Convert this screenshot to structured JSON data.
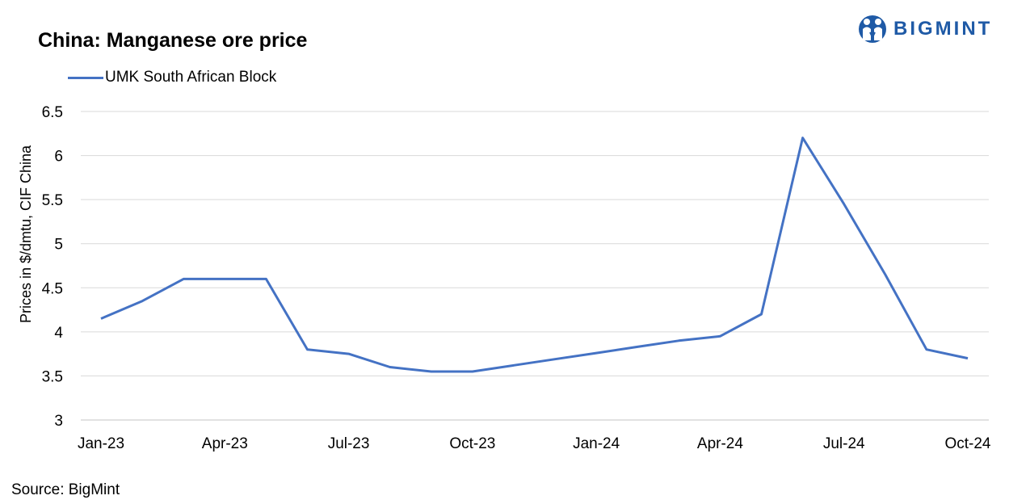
{
  "header": {
    "title": "China: Manganese ore price",
    "brand": "BIGMINT"
  },
  "footer": {
    "source": "Source:  BigMint"
  },
  "colors": {
    "series": "#4472C4",
    "grid": "#d9d9d9",
    "brand": "#1f5aa6"
  },
  "icons": {
    "logo": "bigmint-people-logo-icon"
  },
  "chart_data": {
    "type": "line",
    "title": "China: Manganese ore price",
    "xlabel": "",
    "ylabel": "Prices in $/dmtu, CIF China",
    "ylim": [
      3,
      6.5
    ],
    "yticks": [
      "6.5",
      "6",
      "5.5",
      "5",
      "4.5",
      "4",
      "3.5",
      "3"
    ],
    "xtick_labels": [
      "Jan-23",
      "Apr-23",
      "Jul-23",
      "Oct-23",
      "Jan-24",
      "Apr-24",
      "Jul-24",
      "Oct-24"
    ],
    "x": [
      "Jan-23",
      "Feb-23",
      "Mar-23",
      "Apr-23",
      "May-23",
      "Jun-23",
      "Jul-23",
      "Aug-23",
      "Sep-23",
      "Oct-23",
      "Nov-23",
      "Dec-23",
      "Jan-24",
      "Feb-24",
      "Mar-24",
      "Apr-24",
      "May-24",
      "Jun-24",
      "Jul-24",
      "Aug-24",
      "Sep-24",
      "Oct-24"
    ],
    "series": [
      {
        "name": "UMK South African Block",
        "values": [
          4.15,
          4.35,
          4.6,
          4.6,
          4.6,
          3.8,
          3.75,
          3.6,
          3.55,
          3.55,
          3.62,
          3.69,
          3.76,
          3.83,
          3.9,
          3.95,
          4.2,
          6.2,
          5.45,
          4.65,
          3.8,
          3.7
        ]
      }
    ],
    "grid": true,
    "legend": "top-left"
  }
}
